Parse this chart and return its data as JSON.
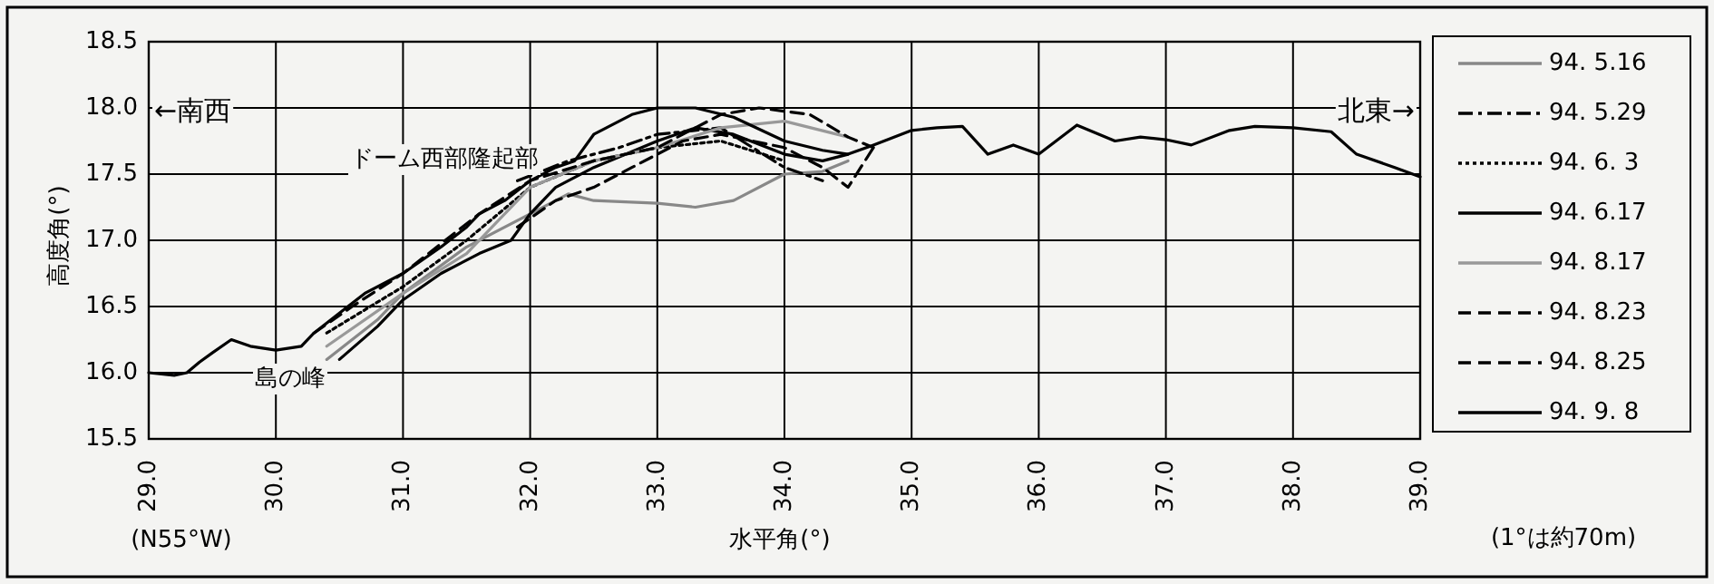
{
  "chart_data": {
    "type": "line",
    "xlabel": "水平角(°)",
    "ylabel": "高度角(°)",
    "xlim": [
      29,
      39
    ],
    "xticks": [
      {
        "value": 29,
        "label": "29.0"
      },
      {
        "value": 30,
        "label": "30.0"
      },
      {
        "value": 31,
        "label": "31.0"
      },
      {
        "value": 32,
        "label": "32.0"
      },
      {
        "value": 33,
        "label": "33.0"
      },
      {
        "value": 34,
        "label": "34.0"
      },
      {
        "value": 35,
        "label": "35.0"
      },
      {
        "value": 36,
        "label": "36.0"
      },
      {
        "value": 37,
        "label": "37.0"
      },
      {
        "value": 38,
        "label": "38.0"
      },
      {
        "value": 39,
        "label": "39.0"
      }
    ],
    "ylim": [
      15.5,
      18.5
    ],
    "yticks": [
      15.5,
      {
        "value": 16,
        "label": "16.0"
      },
      16.5,
      {
        "value": 17,
        "label": "17.0"
      },
      17.5,
      {
        "value": 18,
        "label": "18.0"
      },
      18.5
    ],
    "grid": true,
    "legend": "right",
    "marker": "none",
    "annotations": [
      "←南西",
      "北東→",
      "(N55°W)",
      "(1°は約70m)",
      "島の峰",
      "ドーム西部隆起部"
    ],
    "series": [
      {
        "name": "94. 5.16",
        "color": "#888888",
        "line_style": "solid",
        "x": [
          30.4,
          30.8,
          31.0,
          31.5,
          32.0,
          32.3,
          32.5,
          33.0,
          33.3,
          33.6,
          34.0,
          34.3,
          34.5
        ],
        "values": [
          16.1,
          16.4,
          16.6,
          16.95,
          17.2,
          17.35,
          17.3,
          17.28,
          17.25,
          17.3,
          17.5,
          17.52,
          17.6
        ]
      },
      {
        "name": "94. 5.29",
        "color": "#000000",
        "line_style": "dashdot",
        "x": [
          31.9,
          32.3,
          32.7,
          33.0,
          33.5,
          34.0,
          34.3
        ],
        "values": [
          17.45,
          17.6,
          17.7,
          17.8,
          17.85,
          17.55,
          17.45
        ]
      },
      {
        "name": "94. 6. 3",
        "color": "#000000",
        "line_style": "dotted",
        "x": [
          30.4,
          31.0,
          31.5,
          32.0,
          32.5,
          33.0,
          33.5,
          34.0
        ],
        "values": [
          16.3,
          16.65,
          17.0,
          17.4,
          17.6,
          17.7,
          17.75,
          17.6
        ]
      },
      {
        "name": "94. 6.17",
        "color": "#000000",
        "line_style": "solid",
        "x": [
          30.5,
          30.8,
          31.0,
          31.3,
          31.6,
          31.85,
          32.0,
          32.2,
          32.5,
          33.0,
          33.3,
          33.6,
          34.0,
          34.3,
          34.5
        ],
        "values": [
          16.1,
          16.35,
          16.55,
          16.75,
          16.9,
          17.0,
          17.2,
          17.4,
          17.55,
          17.75,
          17.85,
          17.8,
          17.65,
          17.6,
          17.65
        ]
      },
      {
        "name": "94. 8.17",
        "color": "#999999",
        "line_style": "solid",
        "x": [
          30.4,
          31.0,
          31.5,
          32.0,
          32.5,
          33.0,
          33.5,
          34.0,
          34.5
        ],
        "values": [
          16.2,
          16.6,
          16.9,
          17.4,
          17.6,
          17.7,
          17.85,
          17.9,
          17.78
        ]
      },
      {
        "name": "94. 8.23",
        "color": "#000000",
        "line_style": "dashed",
        "x": [
          30.3,
          30.6,
          31.0,
          31.6,
          32.0,
          32.5,
          33.0,
          33.3,
          33.5,
          33.8,
          34.2,
          34.5,
          34.7
        ],
        "values": [
          16.3,
          16.5,
          16.75,
          17.2,
          17.45,
          17.6,
          17.7,
          17.85,
          17.95,
          18.0,
          17.95,
          17.78,
          17.7
        ]
      },
      {
        "name": "94. 8.25",
        "color": "#000000",
        "line_style": "dashed",
        "x": [
          31.9,
          32.2,
          32.5,
          32.8,
          33.2,
          33.5,
          34.0,
          34.3,
          34.5,
          34.6,
          34.7
        ],
        "values": [
          17.1,
          17.3,
          17.4,
          17.55,
          17.75,
          17.8,
          17.7,
          17.55,
          17.4,
          17.55,
          17.7
        ]
      },
      {
        "name": "94. 9. 8",
        "color": "#000000",
        "line_style": "solid",
        "x": [
          29.0,
          29.2,
          29.3,
          29.4,
          29.5,
          29.65,
          29.8,
          30.0,
          30.2,
          30.3,
          30.5,
          30.7,
          31.0,
          31.3,
          31.5,
          31.6,
          31.8,
          32.0,
          32.2,
          32.35,
          32.5,
          32.8,
          33.0,
          33.3,
          33.6,
          34.0,
          34.3,
          34.5,
          34.7,
          35.0,
          35.2,
          35.4,
          35.6,
          35.8,
          36.0,
          36.3,
          36.6,
          36.8,
          37.0,
          37.2,
          37.5,
          37.7,
          38.0,
          38.3,
          38.5,
          38.8,
          39.0
        ],
        "values": [
          16.0,
          15.98,
          16.0,
          16.08,
          16.15,
          16.25,
          16.2,
          16.17,
          16.2,
          16.3,
          16.45,
          16.6,
          16.75,
          16.95,
          17.1,
          17.2,
          17.3,
          17.45,
          17.55,
          17.6,
          17.8,
          17.95,
          18.0,
          18.0,
          17.93,
          17.75,
          17.68,
          17.65,
          17.72,
          17.83,
          17.85,
          17.86,
          17.65,
          17.72,
          17.65,
          17.87,
          17.75,
          17.78,
          17.76,
          17.72,
          17.83,
          17.86,
          17.85,
          17.82,
          17.65,
          17.55,
          17.48
        ]
      }
    ]
  }
}
